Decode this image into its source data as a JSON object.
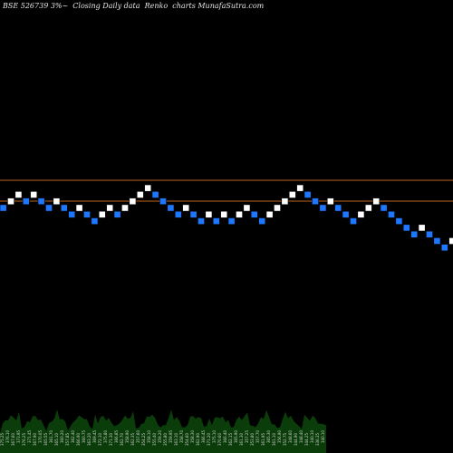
{
  "chart_data": {
    "type": "renko",
    "title": "BSE 526739 3%~  Closing Daily data  Renko  charts MunafaSutra.com",
    "series": [
      {
        "values": [
          8,
          9,
          10,
          9,
          10,
          9,
          8,
          9,
          8,
          7,
          8,
          7,
          6,
          7,
          8,
          7,
          8,
          9,
          10,
          11,
          10,
          9,
          8,
          7,
          8,
          7,
          6,
          7,
          6,
          7,
          6,
          7,
          8,
          7,
          6,
          7,
          8,
          9,
          10,
          11,
          10,
          9,
          8,
          9,
          8,
          7,
          6,
          7,
          8,
          9,
          8,
          7,
          6,
          5,
          4,
          5,
          4,
          3,
          2,
          3
        ],
        "direction": [
          "d",
          "u",
          "u",
          "d",
          "u",
          "d",
          "d",
          "u",
          "d",
          "d",
          "u",
          "d",
          "d",
          "u",
          "u",
          "d",
          "u",
          "u",
          "u",
          "u",
          "d",
          "d",
          "d",
          "d",
          "u",
          "d",
          "d",
          "u",
          "d",
          "u",
          "d",
          "u",
          "u",
          "d",
          "d",
          "u",
          "u",
          "u",
          "u",
          "u",
          "d",
          "d",
          "d",
          "u",
          "d",
          "d",
          "d",
          "u",
          "u",
          "u",
          "d",
          "d",
          "d",
          "d",
          "d",
          "u",
          "d",
          "d",
          "d",
          "u"
        ]
      }
    ],
    "reference_lines": [
      "upper",
      "lower"
    ],
    "colors": {
      "up": "#ffffff",
      "down": "#1e78ff",
      "reference": "#c0651a",
      "background": "#000000",
      "volume": "#0b3d0b"
    },
    "volume_labels": [
      "375.25",
      "376.10",
      "367.60",
      "373.95",
      "376.25",
      "371.45",
      "367.90",
      "370.05",
      "365.55",
      "361.70",
      "365.10",
      "360.20",
      "357.85",
      "362.40",
      "366.90",
      "360.75",
      "363.20",
      "369.45",
      "372.10",
      "375.80",
      "371.30",
      "366.85",
      "362.70",
      "358.90",
      "362.35",
      "357.60",
      "354.25",
      "358.10",
      "355.40",
      "359.20",
      "355.80",
      "359.95",
      "363.10",
      "358.70",
      "354.60",
      "358.30",
      "362.90",
      "366.45",
      "371.20",
      "375.10",
      "370.60",
      "366.40",
      "362.15",
      "365.90",
      "361.30",
      "357.25",
      "353.80",
      "357.70",
      "361.95",
      "365.30",
      "361.10",
      "356.90",
      "352.75",
      "348.60",
      "344.90",
      "348.40",
      "344.25",
      "340.10",
      "336.35",
      "340.10"
    ]
  }
}
